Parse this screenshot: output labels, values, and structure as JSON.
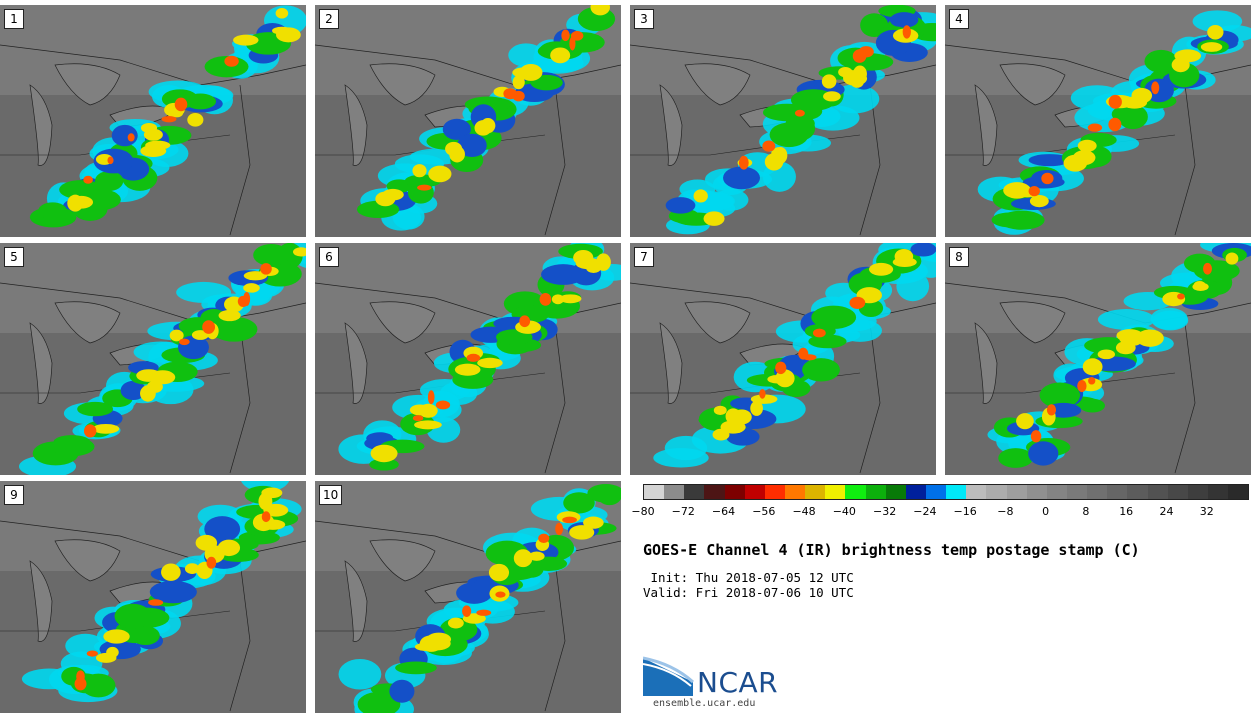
{
  "panels": [
    "1",
    "2",
    "3",
    "4",
    "5",
    "6",
    "7",
    "8",
    "9",
    "10"
  ],
  "colorbar": {
    "colors": [
      "#d4d4d4",
      "#8c8c8c",
      "#3a3a3a",
      "#4d1515",
      "#7d0000",
      "#c00000",
      "#ff2d00",
      "#ff7800",
      "#dcb400",
      "#f0f000",
      "#10ee10",
      "#0cb00c",
      "#087a08",
      "#00209c",
      "#0070e8",
      "#00e8f8",
      "#bcbcbc",
      "#acacac",
      "#9e9e9e",
      "#909090",
      "#848484",
      "#7a7a7a",
      "#707070",
      "#666666",
      "#5c5c5c",
      "#525252",
      "#484848",
      "#3e3e3e",
      "#343434",
      "#2a2a2a"
    ],
    "ticks": [
      "−80",
      "−72",
      "−64",
      "−56",
      "−48",
      "−40",
      "−32",
      "−24",
      "−16",
      "−8",
      "0",
      "8",
      "16",
      "24",
      "32"
    ]
  },
  "title": "GOES-E Channel 4 (IR) brightness temp postage stamp (C)",
  "init": " Init: Thu 2018-07-05 12 UTC",
  "valid": "Valid: Fri 2018-07-06 10 UTC",
  "logo": {
    "name": "NCAR",
    "url": "ensemble.ucar.edu"
  }
}
